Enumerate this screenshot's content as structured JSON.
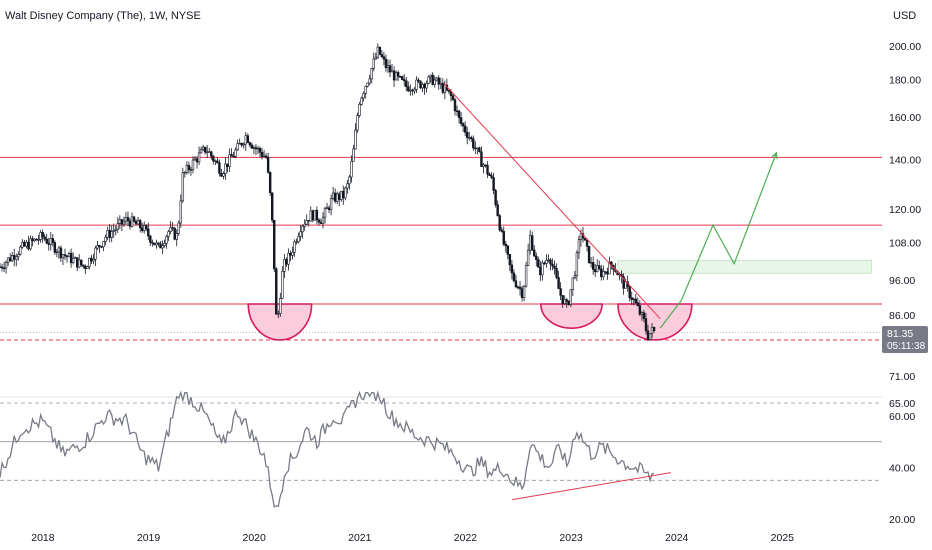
{
  "header": {
    "symbol_title": "Walt Disney Company (The), 1W, NYSE",
    "currency": "USD"
  },
  "price_panel": {
    "last_price": "81.35",
    "countdown": "05:11:38",
    "colors": {
      "resistance": "#e53950",
      "down_trend": "#e53950",
      "bottom_arc": "#d81b60",
      "projection": "#4caf50",
      "zone": "#e8f5e9",
      "price_badge": "#787b86"
    }
  },
  "rsi_panel": {},
  "chart_data": [
    {
      "type": "candlestick",
      "title": "Walt Disney Company (The), 1W, NYSE",
      "x_ticks": [
        "2018",
        "2019",
        "2020",
        "2021",
        "2022",
        "2023",
        "2024",
        "2025"
      ],
      "y_ticks": [
        "200.00",
        "180.00",
        "160.00",
        "140.00",
        "120.00",
        "108.00",
        "96.00",
        "86.00",
        "71.00"
      ],
      "y_scale": "log",
      "price_path": [
        [
          2017.6,
          100
        ],
        [
          2017.8,
          106
        ],
        [
          2018.0,
          110
        ],
        [
          2018.2,
          104
        ],
        [
          2018.4,
          100
        ],
        [
          2018.6,
          110
        ],
        [
          2018.8,
          116
        ],
        [
          2018.95,
          113
        ],
        [
          2019.1,
          106
        ],
        [
          2019.2,
          112
        ],
        [
          2019.28,
          110
        ],
        [
          2019.33,
          133
        ],
        [
          2019.45,
          140
        ],
        [
          2019.55,
          145
        ],
        [
          2019.7,
          135
        ],
        [
          2019.85,
          145
        ],
        [
          2019.93,
          151
        ],
        [
          2020.0,
          146
        ],
        [
          2020.12,
          141
        ],
        [
          2020.17,
          120
        ],
        [
          2020.22,
          82
        ],
        [
          2020.28,
          100
        ],
        [
          2020.35,
          104
        ],
        [
          2020.45,
          114
        ],
        [
          2020.55,
          118
        ],
        [
          2020.65,
          116
        ],
        [
          2020.75,
          124
        ],
        [
          2020.85,
          125
        ],
        [
          2020.9,
          130
        ],
        [
          2020.95,
          145
        ],
        [
          2021.0,
          168
        ],
        [
          2021.1,
          183
        ],
        [
          2021.18,
          197
        ],
        [
          2021.25,
          188
        ],
        [
          2021.35,
          181
        ],
        [
          2021.45,
          176
        ],
        [
          2021.6,
          178
        ],
        [
          2021.7,
          180
        ],
        [
          2021.8,
          175
        ],
        [
          2021.88,
          170
        ],
        [
          2021.95,
          158
        ],
        [
          2022.05,
          150
        ],
        [
          2022.15,
          140
        ],
        [
          2022.25,
          132
        ],
        [
          2022.35,
          110
        ],
        [
          2022.45,
          97
        ],
        [
          2022.55,
          92
        ],
        [
          2022.62,
          110
        ],
        [
          2022.7,
          98
        ],
        [
          2022.8,
          104
        ],
        [
          2022.9,
          92
        ],
        [
          2022.97,
          88
        ],
        [
          2023.05,
          100
        ],
        [
          2023.1,
          112
        ],
        [
          2023.2,
          100
        ],
        [
          2023.3,
          98
        ],
        [
          2023.4,
          101
        ],
        [
          2023.5,
          95
        ],
        [
          2023.6,
          90
        ],
        [
          2023.7,
          84
        ],
        [
          2023.73,
          80.5
        ],
        [
          2023.78,
          82
        ],
        [
          2023.8,
          81.35
        ]
      ],
      "levels": [
        {
          "name": "resistance-1",
          "y": 141
        },
        {
          "name": "resistance-2",
          "y": 114
        },
        {
          "name": "neckline",
          "y": 89
        },
        {
          "name": "lows",
          "y": 79.5
        }
      ],
      "zone": {
        "x": [
          2023.45,
          2025.85
        ],
        "y": [
          98,
          102
        ]
      },
      "down_trendline": {
        "x": [
          2021.8,
          2023.85
        ],
        "y": [
          178,
          85
        ]
      },
      "bottom_arcs": [
        {
          "x": [
            2019.95,
            2020.55
          ],
          "top": 89,
          "bottom": 79.5
        },
        {
          "x": [
            2022.72,
            2023.3
          ],
          "top": 89,
          "bottom": 82.5
        },
        {
          "x": [
            2023.45,
            2024.15
          ],
          "top": 89,
          "bottom": 79.5
        }
      ],
      "projection_path": [
        [
          2023.85,
          82.5
        ],
        [
          2024.05,
          90
        ],
        [
          2024.35,
          114
        ],
        [
          2024.55,
          101
        ],
        [
          2024.95,
          143
        ]
      ]
    },
    {
      "type": "line",
      "title": "",
      "y_ticks": [
        "65.00",
        "60.00",
        "40.00",
        "20.00"
      ],
      "upper_band": 65,
      "lower_band": 35,
      "mid_line": 50,
      "rsi_path": [
        [
          2017.6,
          38
        ],
        [
          2017.8,
          55
        ],
        [
          2018.0,
          58
        ],
        [
          2018.2,
          45
        ],
        [
          2018.4,
          50
        ],
        [
          2018.6,
          60
        ],
        [
          2018.8,
          58
        ],
        [
          2018.95,
          45
        ],
        [
          2019.1,
          40
        ],
        [
          2019.2,
          55
        ],
        [
          2019.3,
          70
        ],
        [
          2019.45,
          65
        ],
        [
          2019.55,
          60
        ],
        [
          2019.7,
          48
        ],
        [
          2019.85,
          62
        ],
        [
          2019.95,
          55
        ],
        [
          2020.1,
          45
        ],
        [
          2020.18,
          30
        ],
        [
          2020.22,
          22
        ],
        [
          2020.3,
          40
        ],
        [
          2020.4,
          45
        ],
        [
          2020.5,
          55
        ],
        [
          2020.6,
          50
        ],
        [
          2020.75,
          60
        ],
        [
          2020.85,
          58
        ],
        [
          2020.95,
          65
        ],
        [
          2021.0,
          68
        ],
        [
          2021.1,
          70
        ],
        [
          2021.2,
          68
        ],
        [
          2021.3,
          60
        ],
        [
          2021.45,
          55
        ],
        [
          2021.55,
          52
        ],
        [
          2021.7,
          50
        ],
        [
          2021.8,
          48
        ],
        [
          2021.9,
          45
        ],
        [
          2022.05,
          38
        ],
        [
          2022.15,
          42
        ],
        [
          2022.25,
          38
        ],
        [
          2022.35,
          40
        ],
        [
          2022.45,
          35
        ],
        [
          2022.55,
          32
        ],
        [
          2022.62,
          50
        ],
        [
          2022.7,
          45
        ],
        [
          2022.8,
          40
        ],
        [
          2022.9,
          48
        ],
        [
          2022.97,
          40
        ],
        [
          2023.05,
          55
        ],
        [
          2023.1,
          52
        ],
        [
          2023.2,
          45
        ],
        [
          2023.3,
          48
        ],
        [
          2023.4,
          45
        ],
        [
          2023.5,
          42
        ],
        [
          2023.6,
          40
        ],
        [
          2023.7,
          38
        ],
        [
          2023.75,
          36
        ],
        [
          2023.8,
          38
        ]
      ],
      "bull_divergence": {
        "x": [
          2022.45,
          2023.95
        ],
        "y": [
          27.5,
          38
        ]
      }
    }
  ]
}
